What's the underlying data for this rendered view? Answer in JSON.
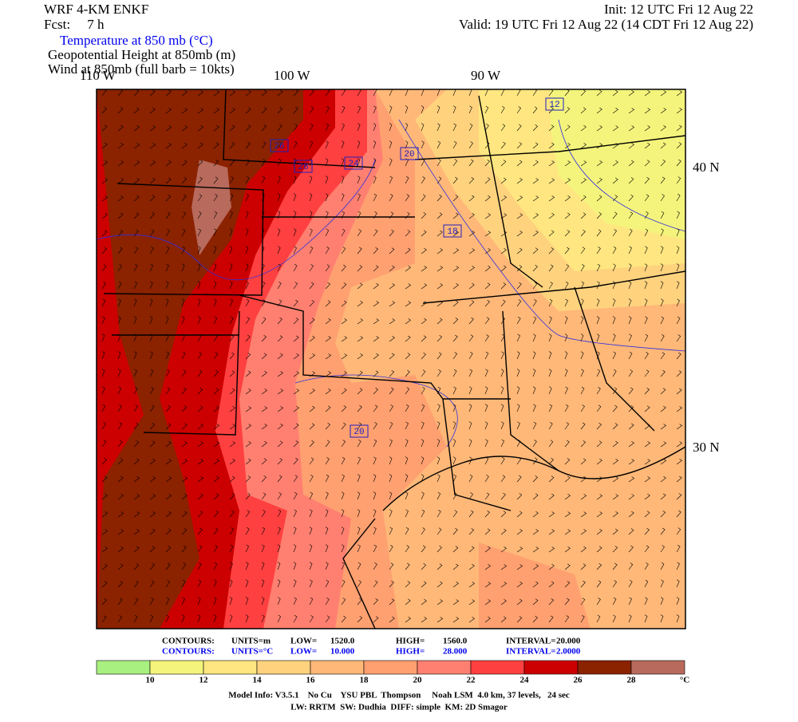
{
  "header": {
    "model": "WRF 4-KM ENKF",
    "forecast": "Fcst:     7 h",
    "init": "Init: 12 UTC Fri 12 Aug 22",
    "valid": "Valid: 19 UTC Fri 12 Aug 22 (14 CDT Fri 12 Aug 22)"
  },
  "fields": [
    "Temperature at 850 mb (°C)",
    "Geopotential Height at 850mb (m)",
    "Wind at 850mb (full barb = 10kts)"
  ],
  "map": {
    "longitudes": [
      "110 W",
      "100 W",
      "90 W"
    ],
    "latitudes": [
      "40 N",
      "30 N"
    ],
    "contour_labels": [
      "12",
      "26",
      "28",
      "24",
      "20",
      "18",
      "20"
    ]
  },
  "contours": [
    {
      "label": "CONTOURS:",
      "units": "UNITS=m",
      "low_label": "LOW=",
      "low": "1520.0",
      "high_label": "HIGH=",
      "high": "1560.0",
      "interval_label": "INTERVAL=",
      "interval": "20.000"
    },
    {
      "label": "CONTOURS:",
      "units": "UNITS=°C",
      "low_label": "LOW=",
      "low": "10.000",
      "high_label": "HIGH=",
      "high": "28.000",
      "interval_label": "INTERVAL=",
      "interval": "2.0000"
    }
  ],
  "colorbar": {
    "levels": [
      10,
      12,
      14,
      16,
      18,
      20,
      22,
      24,
      26,
      28
    ],
    "unit": "°C",
    "colors": [
      "#a8f080",
      "#f4f47c",
      "#ffe680",
      "#ffd27e",
      "#ffb878",
      "#ffa070",
      "#ff8070",
      "#ff4040",
      "#cc0000",
      "#8b2200",
      "#b86a5c"
    ]
  },
  "footer": [
    "Model Info: V3.5.1    No Cu    YSU PBL  Thompson     Noah LSM  4.0 km, 37 levels,   24 sec",
    "LW: RRTM  SW: Dudhia  DIFF: simple  KM: 2D Smagor"
  ]
}
